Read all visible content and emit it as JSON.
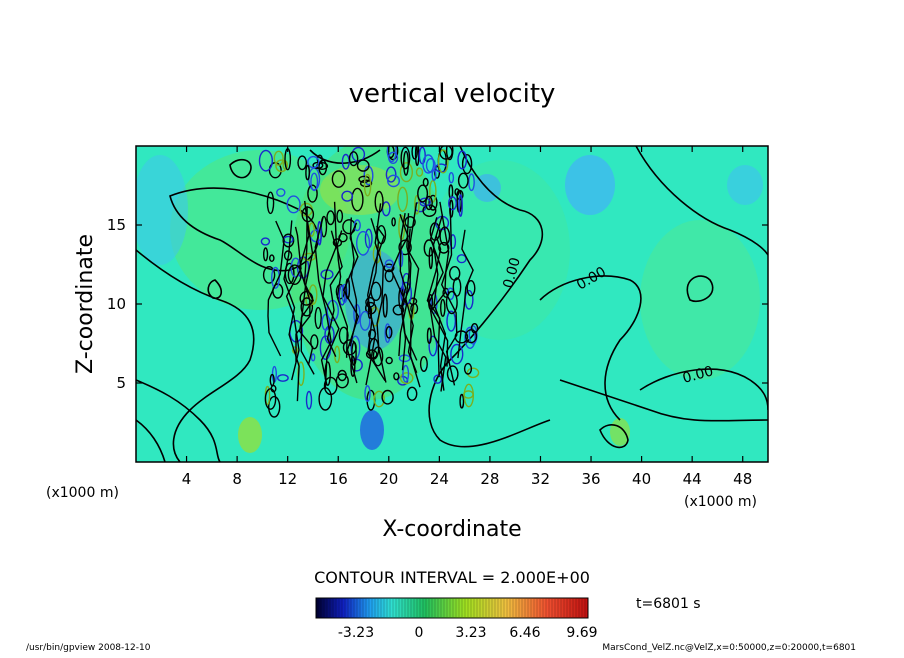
{
  "chart_data": {
    "type": "heatmap",
    "title": "vertical velocity",
    "xlabel": "X-coordinate",
    "ylabel": "Z-coordinate",
    "x_unit_left": "(x1000 m)",
    "x_unit_right": "(x1000 m)",
    "xlim": [
      0,
      50
    ],
    "ylim": [
      0,
      20
    ],
    "x_ticks": [
      4,
      8,
      12,
      16,
      20,
      24,
      28,
      32,
      36,
      40,
      44,
      48
    ],
    "y_ticks": [
      5,
      10,
      15
    ],
    "contour_interval": "CONTOUR INTERVAL = 2.000E+00",
    "contour_labels": [
      "0.00",
      "0.00",
      "0.00"
    ],
    "colorbar_ticks": [
      "-3.23",
      "0",
      "3.23",
      "6.46",
      "9.69"
    ],
    "time": "t=6801 s",
    "footer_left": "/usr/bin/gpview  2008-12-10",
    "footer_right": "MarsCond_VelZ.nc@VelZ,x=0:50000,z=0:20000,t=6801",
    "grid": false
  }
}
